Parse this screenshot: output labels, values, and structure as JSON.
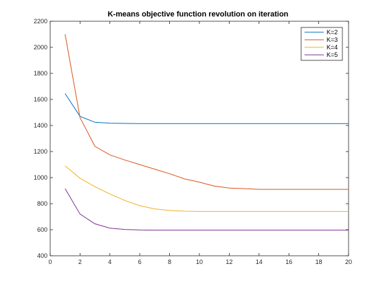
{
  "chart_data": {
    "type": "line",
    "title": "K-means objective function revolution on iteration",
    "xlabel": "",
    "ylabel": "",
    "xlim": [
      0,
      20
    ],
    "ylim": [
      400,
      2200
    ],
    "xticks": [
      0,
      2,
      4,
      6,
      8,
      10,
      12,
      14,
      16,
      18,
      20
    ],
    "yticks": [
      400,
      600,
      800,
      1000,
      1200,
      1400,
      1600,
      1800,
      2000,
      2200
    ],
    "grid": false,
    "legend_position": "top-right",
    "x": [
      1,
      2,
      3,
      4,
      5,
      6,
      7,
      8,
      9,
      10,
      11,
      12,
      13,
      14,
      15,
      16,
      17,
      18,
      19,
      20
    ],
    "series": [
      {
        "name": "K=2",
        "color": "#0072BD",
        "values": [
          1645,
          1470,
          1425,
          1418,
          1416,
          1415,
          1415,
          1415,
          1415,
          1415,
          1415,
          1415,
          1415,
          1415,
          1415,
          1415,
          1415,
          1415,
          1415,
          1415
        ]
      },
      {
        "name": "K=3",
        "color": "#D95319",
        "values": [
          2100,
          1460,
          1240,
          1175,
          1135,
          1100,
          1065,
          1030,
          990,
          965,
          935,
          920,
          915,
          910,
          910,
          910,
          910,
          910,
          910,
          910
        ]
      },
      {
        "name": "K=4",
        "color": "#EDB120",
        "values": [
          1090,
          995,
          930,
          875,
          825,
          785,
          760,
          748,
          742,
          740,
          740,
          740,
          740,
          740,
          740,
          740,
          740,
          740,
          740,
          740
        ]
      },
      {
        "name": "K=5",
        "color": "#7E2F8E",
        "values": [
          915,
          720,
          645,
          612,
          602,
          598,
          597,
          597,
          597,
          597,
          597,
          597,
          597,
          597,
          597,
          597,
          597,
          597,
          597,
          597
        ]
      }
    ]
  }
}
